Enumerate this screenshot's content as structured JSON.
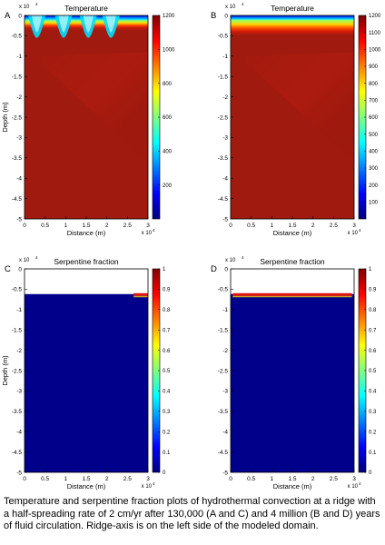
{
  "caption": "Temperature and serpentine fraction plots of hydrothermal convection at a ridge with a half-spreading rate of 2 cm/yr after 130,000 (A and C) and 4 million (B and D) years of fluid circulation. Ridge-axis is on the left side of the modeled domain.",
  "colors": {
    "jet": [
      "#00007f",
      "#0000ff",
      "#007fff",
      "#00ffff",
      "#7fff7f",
      "#ffff00",
      "#ff7f00",
      "#ff0000",
      "#7f0000"
    ],
    "hot_body": "#a01a0f",
    "serpentine_background": "#00008b",
    "empty_region": "#ffffff"
  },
  "chart_data": [
    {
      "id": "A",
      "panel_letter": "A",
      "type": "heatmap",
      "title": "Temperature",
      "xlabel": "Distance (m)",
      "ylabel": "Depth (m)",
      "x_exponent": "x 10",
      "x_exponent_power": "4",
      "y_exponent": "x 10",
      "y_exponent_power": "4",
      "xlim": [
        0,
        3
      ],
      "ylim": [
        -5,
        0
      ],
      "xticks": [
        "0",
        "0.5",
        "1",
        "1.5",
        "2",
        "2.5",
        "3"
      ],
      "yticks": [
        "0",
        "-0.5",
        "-1",
        "-1.5",
        "-2",
        "-2.5",
        "-3",
        "-3.5",
        "-4",
        "-4.5",
        "-5"
      ],
      "colorbar_range": [
        0,
        1200
      ],
      "colorbar_ticks": [
        "200",
        "400",
        "600",
        "800",
        "1000",
        "1200"
      ],
      "colorbar_tick_values": [
        200,
        400,
        600,
        800,
        1000,
        1200
      ],
      "cold_layer_depth": -0.5,
      "hot_depth": -1.1,
      "plume_x": [
        0.3,
        0.95,
        1.55,
        2.1
      ]
    },
    {
      "id": "B",
      "panel_letter": "B",
      "type": "heatmap",
      "title": "Temperature",
      "xlabel": "Distance (m)",
      "ylabel": "",
      "x_exponent": "x 10",
      "x_exponent_power": "4",
      "y_exponent": "x 10",
      "y_exponent_power": "4",
      "xlim": [
        0,
        3
      ],
      "ylim": [
        -5,
        0
      ],
      "xticks": [
        "0",
        "0.5",
        "1",
        "1.5",
        "2",
        "2.5",
        "3"
      ],
      "yticks": [
        "0",
        "-0.5",
        "-1",
        "-1.5",
        "-2",
        "-2.5",
        "-3",
        "-3.5",
        "-4",
        "-4.5",
        "-5"
      ],
      "colorbar_range": [
        0,
        1200
      ],
      "colorbar_ticks": [
        "100",
        "200",
        "300",
        "400",
        "500",
        "600",
        "700",
        "800",
        "900",
        "1000",
        "1100",
        "1200"
      ],
      "colorbar_tick_values": [
        100,
        200,
        300,
        400,
        500,
        600,
        700,
        800,
        900,
        1000,
        1100,
        1200
      ],
      "cold_layer_depth": -0.4,
      "hot_depth": -1.3
    },
    {
      "id": "C",
      "panel_letter": "C",
      "type": "heatmap",
      "title": "Serpentine fraction",
      "xlabel": "Distance (m)",
      "ylabel": "Depth (m)",
      "x_exponent": "x 10",
      "x_exponent_power": "4",
      "y_exponent": "x 10",
      "y_exponent_power": "4",
      "xlim": [
        0,
        3
      ],
      "ylim": [
        -5,
        0
      ],
      "xticks": [
        "0",
        "0.5",
        "1",
        "1.5",
        "2",
        "2.5",
        "3"
      ],
      "yticks": [
        "0",
        "-0.5",
        "-1",
        "-1.5",
        "-2",
        "-2.5",
        "-3",
        "-3.5",
        "-4",
        "-4.5",
        "-5"
      ],
      "colorbar_range": [
        0,
        1
      ],
      "colorbar_ticks": [
        "0",
        "0.1",
        "0.2",
        "0.3",
        "0.4",
        "0.5",
        "0.6",
        "0.7",
        "0.8",
        "0.9",
        "1"
      ],
      "colorbar_tick_values": [
        0,
        0.1,
        0.2,
        0.3,
        0.4,
        0.5,
        0.6,
        0.7,
        0.8,
        0.9,
        1
      ],
      "empty_above_depth": -0.62,
      "serpentinized_band_x": [
        2.65,
        3.0
      ]
    },
    {
      "id": "D",
      "panel_letter": "D",
      "type": "heatmap",
      "title": "Serpentine fraction",
      "xlabel": "Distance (m)",
      "ylabel": "",
      "x_exponent": "x 10",
      "x_exponent_power": "4",
      "y_exponent": "x 10",
      "y_exponent_power": "4",
      "xlim": [
        0,
        3
      ],
      "ylim": [
        -5,
        0
      ],
      "xticks": [
        "0",
        "0.5",
        "1",
        "1.5",
        "2",
        "2.5",
        "3"
      ],
      "yticks": [
        "0",
        "-0.5",
        "-1",
        "-1.5",
        "-2",
        "-2.5",
        "-3",
        "-3.5",
        "-4",
        "-4.5",
        "-5"
      ],
      "colorbar_range": [
        0,
        1
      ],
      "colorbar_ticks": [
        "0",
        "0.1",
        "0.2",
        "0.3",
        "0.4",
        "0.5",
        "0.6",
        "0.7",
        "0.8",
        "0.9",
        "1"
      ],
      "colorbar_tick_values": [
        0,
        0.1,
        0.2,
        0.3,
        0.4,
        0.5,
        0.6,
        0.7,
        0.8,
        0.9,
        1
      ],
      "empty_above_depth": -0.62,
      "serpentinized_band_x": [
        0.05,
        2.95
      ]
    }
  ]
}
